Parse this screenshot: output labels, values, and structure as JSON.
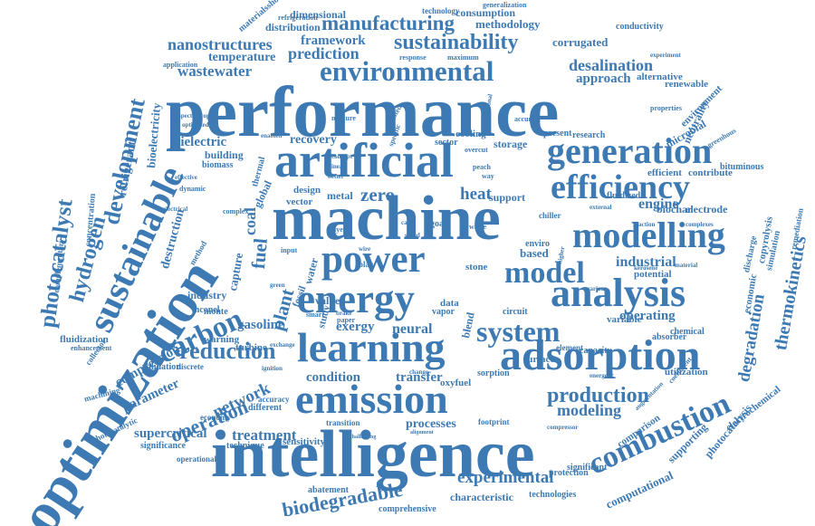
{
  "palette": {
    "word": "#3d7ab3"
  },
  "words": [
    {
      "text": "performance"
    },
    {
      "text": "optimization"
    },
    {
      "text": "intelligence"
    },
    {
      "text": "machine"
    },
    {
      "text": "artificial"
    },
    {
      "text": "emission"
    },
    {
      "text": "learning"
    },
    {
      "text": "energy"
    },
    {
      "text": "power"
    },
    {
      "text": "analysis"
    },
    {
      "text": "adsorption"
    },
    {
      "text": "generation"
    },
    {
      "text": "efficiency"
    },
    {
      "text": "modelling"
    },
    {
      "text": "environmental"
    },
    {
      "text": "sustainable"
    },
    {
      "text": "model"
    },
    {
      "text": "system"
    },
    {
      "text": "combustion"
    },
    {
      "text": "carbon"
    },
    {
      "text": "reduction"
    },
    {
      "text": "sustainability"
    },
    {
      "text": "manufacturing"
    },
    {
      "text": "development"
    },
    {
      "text": "photocatalyst"
    },
    {
      "text": "hydrogen"
    },
    {
      "text": "production"
    },
    {
      "text": "operation"
    },
    {
      "text": "network"
    },
    {
      "text": "biodegradable"
    },
    {
      "text": "experimental"
    },
    {
      "text": "processes"
    },
    {
      "text": "modeling"
    },
    {
      "text": "degradation"
    },
    {
      "text": "thermokinetics"
    },
    {
      "text": "nanostructures"
    },
    {
      "text": "prediction"
    },
    {
      "text": "wastewater"
    },
    {
      "text": "desalination"
    },
    {
      "text": "framework"
    },
    {
      "text": "temperature"
    },
    {
      "text": "parameter"
    },
    {
      "text": "compression"
    },
    {
      "text": "treatment"
    },
    {
      "text": "supercritical"
    },
    {
      "text": "condition"
    },
    {
      "text": "transfer"
    },
    {
      "text": "zero"
    },
    {
      "text": "heat"
    },
    {
      "text": "engine"
    },
    {
      "text": "industrial"
    },
    {
      "text": "operating"
    },
    {
      "text": "neural"
    },
    {
      "text": "exergy"
    },
    {
      "text": "gasoline"
    },
    {
      "text": "fuel"
    },
    {
      "text": "plant"
    },
    {
      "text": "coal"
    },
    {
      "text": "capture"
    },
    {
      "text": "recovery"
    },
    {
      "text": "dielectric"
    },
    {
      "text": "refrigerant"
    },
    {
      "text": "bioelectricity"
    },
    {
      "text": "destruction"
    },
    {
      "text": "approach"
    },
    {
      "text": "methodology"
    },
    {
      "text": "corrugated"
    },
    {
      "text": "consumption"
    },
    {
      "text": "distribution"
    },
    {
      "text": "dimensional"
    },
    {
      "text": "renewable"
    },
    {
      "text": "alternative"
    },
    {
      "text": "neutrality"
    },
    {
      "text": "microbial"
    },
    {
      "text": "environment"
    },
    {
      "text": "electrode"
    },
    {
      "text": "biochar"
    },
    {
      "text": "efficient"
    },
    {
      "text": "contribute"
    },
    {
      "text": "research"
    },
    {
      "text": "present"
    },
    {
      "text": "support"
    },
    {
      "text": "storage"
    },
    {
      "text": "cooling"
    },
    {
      "text": "sector"
    },
    {
      "text": "based"
    },
    {
      "text": "enviro"
    },
    {
      "text": "stone"
    },
    {
      "text": "variable"
    },
    {
      "text": "economic"
    },
    {
      "text": "potential"
    },
    {
      "text": "capacity"
    },
    {
      "text": "utilization"
    },
    {
      "text": "oxyfuel"
    },
    {
      "text": "sorption"
    },
    {
      "text": "surface"
    },
    {
      "text": "element"
    },
    {
      "text": "chemical"
    },
    {
      "text": "absorber"
    },
    {
      "text": "computational"
    },
    {
      "text": "supporting"
    },
    {
      "text": "photocatalysis"
    },
    {
      "text": "electrochemical"
    },
    {
      "text": "comparison"
    },
    {
      "text": "significant"
    },
    {
      "text": "protection"
    },
    {
      "text": "technologies"
    },
    {
      "text": "characteristic"
    },
    {
      "text": "comprehensive"
    },
    {
      "text": "abatement"
    },
    {
      "text": "technique"
    },
    {
      "text": "significance"
    },
    {
      "text": "operational"
    },
    {
      "text": "machining"
    },
    {
      "text": "photocatalytic"
    },
    {
      "text": "economy"
    },
    {
      "text": "different"
    },
    {
      "text": "accuracy"
    },
    {
      "text": "sensitivity"
    },
    {
      "text": "footprint"
    },
    {
      "text": "transition"
    },
    {
      "text": "validation"
    },
    {
      "text": "discrete"
    },
    {
      "text": "fluidization"
    },
    {
      "text": "enhancement"
    },
    {
      "text": "collector"
    },
    {
      "text": "complementary"
    },
    {
      "text": "concentration"
    },
    {
      "text": "biomass"
    },
    {
      "text": "building"
    },
    {
      "text": "global"
    },
    {
      "text": "thermal"
    },
    {
      "text": "industry"
    },
    {
      "text": "inconel"
    },
    {
      "text": "method"
    },
    {
      "text": "monte"
    },
    {
      "text": "warning"
    },
    {
      "text": "turbine"
    },
    {
      "text": "vector"
    },
    {
      "text": "design"
    },
    {
      "text": "metal"
    },
    {
      "text": "water"
    },
    {
      "text": "fossil"
    },
    {
      "text": "value"
    },
    {
      "text": "study"
    },
    {
      "text": "blend"
    },
    {
      "text": "circuit"
    },
    {
      "text": "vapor"
    },
    {
      "text": "data"
    },
    {
      "text": "goal"
    },
    {
      "text": "solar"
    },
    {
      "text": "input"
    },
    {
      "text": "paper"
    },
    {
      "text": "layer"
    },
    {
      "text": "chiller"
    },
    {
      "text": "fluidized"
    },
    {
      "text": "copyrolysis"
    },
    {
      "text": "discharge"
    },
    {
      "text": "simulation"
    },
    {
      "text": "remediation"
    },
    {
      "text": "bituminous"
    },
    {
      "text": "greenhous"
    },
    {
      "text": "properties"
    },
    {
      "text": "experiment"
    },
    {
      "text": "conductivity"
    },
    {
      "text": "generalization"
    },
    {
      "text": "technology"
    },
    {
      "text": "refrigeration"
    },
    {
      "text": "materialsshow"
    },
    {
      "text": "application"
    },
    {
      "text": "response"
    },
    {
      "text": "maximum"
    },
    {
      "text": "mixture"
    },
    {
      "text": "accurate"
    },
    {
      "text": "peach"
    },
    {
      "text": "way"
    },
    {
      "text": "overcut"
    },
    {
      "text": "kerosene"
    },
    {
      "text": "material"
    },
    {
      "text": "reaction"
    },
    {
      "text": "complexes"
    },
    {
      "text": "external"
    },
    {
      "text": "various"
    },
    {
      "text": "higher"
    },
    {
      "text": "energetic"
    },
    {
      "text": "coefficient"
    },
    {
      "text": "augmentation"
    },
    {
      "text": "compressor"
    },
    {
      "text": "challenging"
    },
    {
      "text": "alignment"
    },
    {
      "text": "change"
    },
    {
      "text": "ignition"
    },
    {
      "text": "electrical"
    },
    {
      "text": "effective"
    },
    {
      "text": "dynamic"
    },
    {
      "text": "complex"
    },
    {
      "text": "spectroscopy"
    },
    {
      "text": "optimized"
    },
    {
      "text": "enabled"
    },
    {
      "text": "concept"
    },
    {
      "text": "linear"
    },
    {
      "text": "better"
    },
    {
      "text": "specific"
    },
    {
      "text": "printed"
    },
    {
      "text": "conventional"
    },
    {
      "text": "smart"
    },
    {
      "text": "brake"
    },
    {
      "text": "exchange"
    },
    {
      "text": "waste"
    },
    {
      "text": "carlo"
    },
    {
      "text": "speed"
    },
    {
      "text": "green"
    },
    {
      "text": "wire"
    }
  ]
}
